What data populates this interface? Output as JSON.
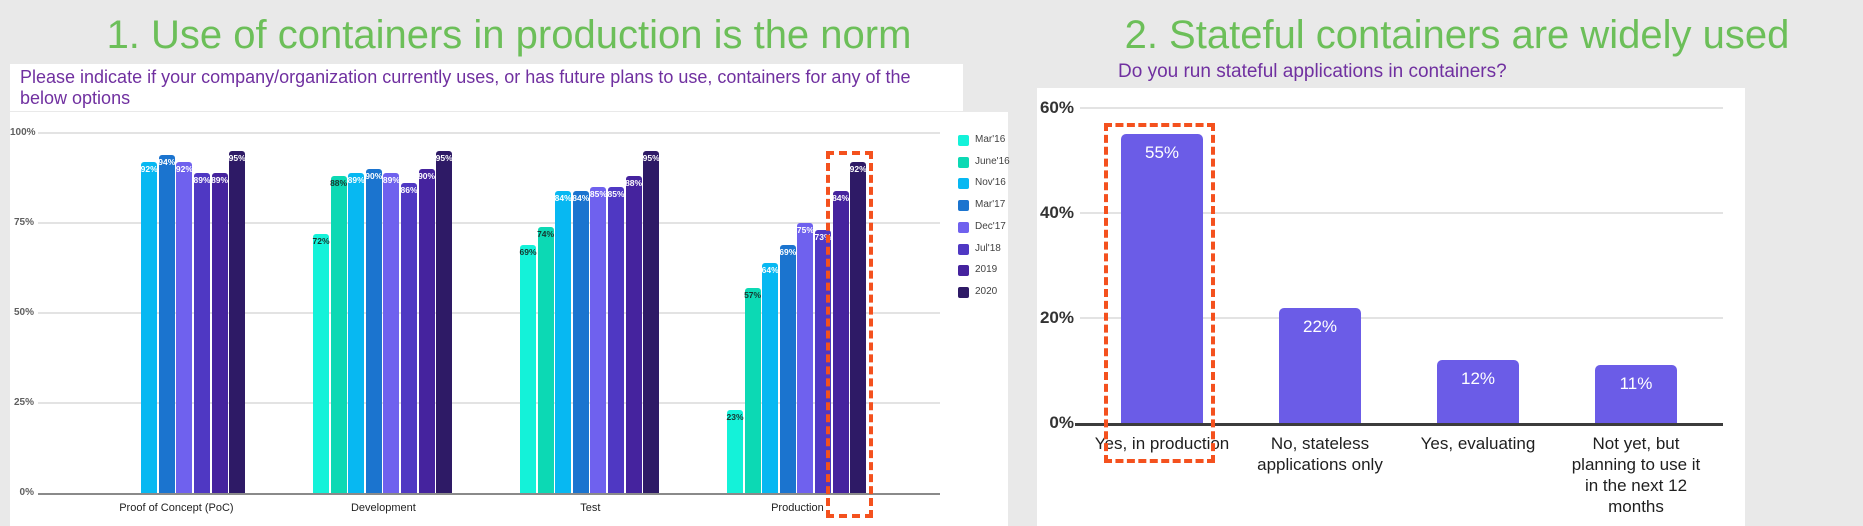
{
  "palette": {
    "background": "#e9e9e9",
    "panel": "#ffffff",
    "title_green": "#6cbf59",
    "subtitle_purple": "#7030a0",
    "highlight_orange": "#f4511e",
    "grid_line": "#e3e3e3",
    "axis_line_left": "#8a8a8a",
    "axis_line_right": "#3c3c3c",
    "tick_text_left": "#5f5f5f",
    "tick_text_right": "#333333",
    "category_text": "#1f1f1f",
    "legend_text": "#424242"
  },
  "left": {
    "title": "1. Use of containers in production is the norm",
    "subtitle": "Please indicate if your company/organization currently uses, or has future plans to use, containers for any of the below options"
  },
  "right": {
    "title": "2. Stateful containers are widely used",
    "subtitle": "Do you run stateful applications in containers?"
  },
  "chart_data": [
    {
      "type": "bar",
      "title": "Please indicate if your company/organization currently uses, or has future plans to use, containers for any of the below options",
      "categories": [
        "Proof of Concept (PoC)",
        "Development",
        "Test",
        "Production"
      ],
      "series": [
        {
          "name": "Mar'16",
          "color": "#14f2d9",
          "label_color": "#16342e",
          "values": [
            null,
            72,
            69,
            23
          ]
        },
        {
          "name": "June'16",
          "color": "#0cd9b4",
          "label_color": "#16342e",
          "values": [
            null,
            88,
            74,
            57
          ]
        },
        {
          "name": "Nov'16",
          "color": "#07b8f2",
          "label_color": "#ffffff",
          "values": [
            92,
            89,
            84,
            64
          ]
        },
        {
          "name": "Mar'17",
          "color": "#1b74cf",
          "label_color": "#ffffff",
          "values": [
            94,
            90,
            84,
            69
          ]
        },
        {
          "name": "Dec'17",
          "color": "#6f61ee",
          "label_color": "#ffffff",
          "values": [
            92,
            89,
            85,
            75
          ]
        },
        {
          "name": "Jul'18",
          "color": "#4f38c3",
          "label_color": "#ffffff",
          "values": [
            89,
            86,
            85,
            73
          ]
        },
        {
          "name": "2019",
          "color": "#45239e",
          "label_color": "#ffffff",
          "values": [
            89,
            90,
            88,
            84
          ]
        },
        {
          "name": "2020",
          "color": "#2e1a66",
          "label_color": "#ffffff",
          "values": [
            95,
            95,
            95,
            92
          ]
        }
      ],
      "yticks": [
        0,
        25,
        50,
        75,
        100
      ],
      "ylim": [
        0,
        100
      ],
      "grid": true,
      "legend_position": "right",
      "value_label_format": "percent",
      "highlight": {
        "category": "Production",
        "series": [
          "2019",
          "2020"
        ],
        "style": "orange dashed box"
      }
    },
    {
      "type": "bar",
      "title": "Do you run stateful applications in containers?",
      "categories": [
        "Yes, in production",
        "No, stateless\napplications only",
        "Yes, evaluating",
        "Not yet, but\nplanning to use it\nin the next 12\nmonths"
      ],
      "values": [
        55,
        22,
        12,
        11
      ],
      "bar_color": "#6b5ce7",
      "value_label_color": "#ffffff",
      "yticks": [
        0,
        20,
        40,
        60
      ],
      "ylim": [
        0,
        60
      ],
      "grid": true,
      "legend_position": "none",
      "value_label_format": "percent",
      "highlight": {
        "category": "Yes, in production",
        "style": "orange dashed box"
      }
    }
  ]
}
